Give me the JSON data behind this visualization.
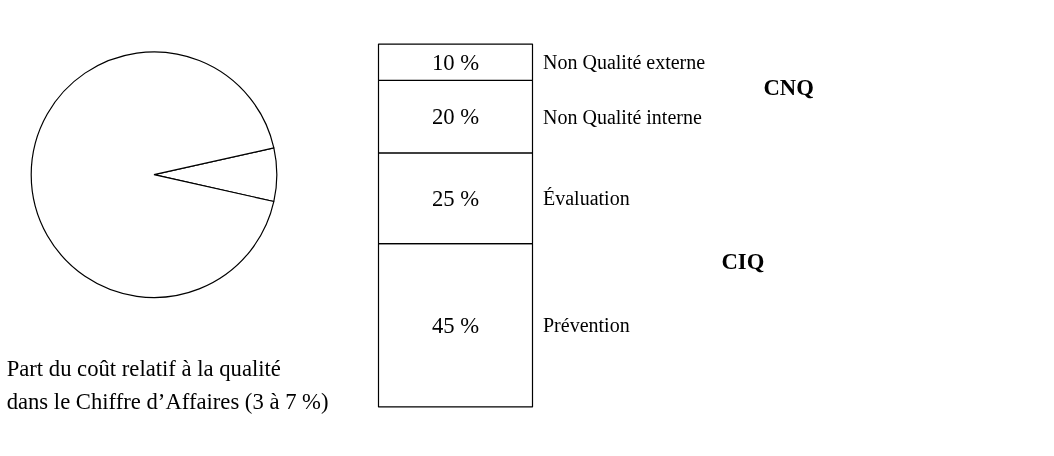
{
  "chart_data": [
    {
      "type": "pie",
      "categories": [
        null,
        null
      ],
      "values": [
        7,
        93
      ],
      "colors": [
        "#ffffff",
        "#ffffff"
      ],
      "annotations": [
        "Part du coût relatif à la qualité\ndans le Chiffre d’Affaires (3 à 7 %)"
      ]
    },
    {
      "type": "bar",
      "stacked": true,
      "categories": [
        null
      ],
      "series": [
        {
          "name": "Prévention",
          "color": "#ffffff",
          "values": [
            45
          ],
          "value_labels": [
            "45 %"
          ]
        },
        {
          "name": "Évaluation",
          "color": "#ffffff",
          "values": [
            25
          ],
          "value_labels": [
            "25 %"
          ]
        },
        {
          "name": "Non Qualité interne",
          "color": "#ffffff",
          "values": [
            20
          ],
          "value_labels": [
            "20 %"
          ]
        },
        {
          "name": "Non Qualité externe",
          "color": "#ffffff",
          "values": [
            10
          ],
          "value_labels": [
            "10 %"
          ]
        }
      ],
      "annotations": [
        "CNQ",
        "CIQ"
      ]
    }
  ]
}
